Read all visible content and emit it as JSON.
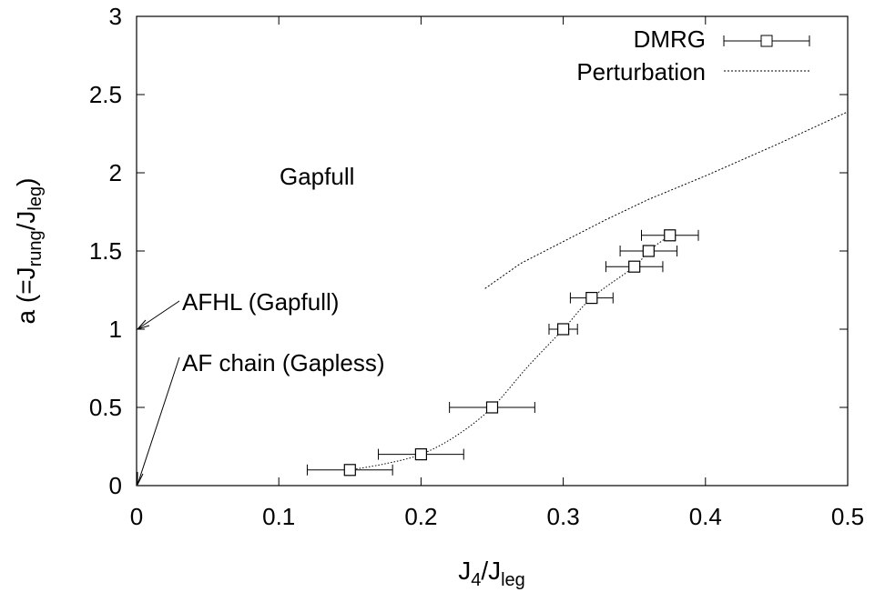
{
  "chart_data": {
    "type": "scatter",
    "x_axis": {
      "label_main": "J",
      "label_sub1": "4",
      "label_mid": "/J",
      "label_sub2": "leg",
      "range": [
        0,
        0.5
      ],
      "ticks": [
        0,
        0.1,
        0.2,
        0.3,
        0.4,
        0.5
      ],
      "tick_labels": [
        "0",
        "0.1",
        "0.2",
        "0.3",
        "0.4",
        "0.5"
      ]
    },
    "y_axis": {
      "label_pre": "a (=J",
      "label_sub1": "rung",
      "label_mid": "/J",
      "label_sub2": "leg",
      "label_post": ")",
      "range": [
        0,
        3
      ],
      "ticks": [
        0,
        0.5,
        1,
        1.5,
        2,
        2.5,
        3
      ],
      "tick_labels": [
        "0",
        "0.5",
        "1",
        "1.5",
        "2",
        "2.5",
        "3"
      ]
    },
    "grid": false,
    "legend_position": "top-right",
    "series": [
      {
        "name": "DMRG",
        "style": "points-errorbars",
        "points": [
          {
            "x": 0.15,
            "y": 0.1,
            "xerr_lo": 0.12,
            "xerr_hi": 0.18
          },
          {
            "x": 0.2,
            "y": 0.2,
            "xerr_lo": 0.17,
            "xerr_hi": 0.23
          },
          {
            "x": 0.25,
            "y": 0.5,
            "xerr_lo": 0.22,
            "xerr_hi": 0.28
          },
          {
            "x": 0.3,
            "y": 1.0,
            "xerr_lo": 0.29,
            "xerr_hi": 0.31
          },
          {
            "x": 0.32,
            "y": 1.2,
            "xerr_lo": 0.305,
            "xerr_hi": 0.335
          },
          {
            "x": 0.35,
            "y": 1.4,
            "xerr_lo": 0.33,
            "xerr_hi": 0.37
          },
          {
            "x": 0.36,
            "y": 1.5,
            "xerr_lo": 0.34,
            "xerr_hi": 0.38
          },
          {
            "x": 0.375,
            "y": 1.6,
            "xerr_lo": 0.355,
            "xerr_hi": 0.395
          }
        ],
        "guide_curve": [
          [
            0.15,
            0.1
          ],
          [
            0.175,
            0.14
          ],
          [
            0.2,
            0.2
          ],
          [
            0.225,
            0.32
          ],
          [
            0.25,
            0.5
          ],
          [
            0.275,
            0.76
          ],
          [
            0.3,
            1.0
          ],
          [
            0.32,
            1.2
          ],
          [
            0.35,
            1.4
          ],
          [
            0.36,
            1.5
          ],
          [
            0.375,
            1.6
          ]
        ]
      },
      {
        "name": "Perturbation",
        "style": "dotted-line",
        "points": [
          [
            0.245,
            1.26
          ],
          [
            0.27,
            1.42
          ],
          [
            0.3,
            1.56
          ],
          [
            0.33,
            1.7
          ],
          [
            0.36,
            1.83
          ],
          [
            0.4,
            1.98
          ],
          [
            0.45,
            2.18
          ],
          [
            0.5,
            2.39
          ]
        ]
      }
    ],
    "annotations": [
      {
        "text": "Gapfull",
        "x": 0.1,
        "y": 1.95
      },
      {
        "text": "AFHL (Gapfull)",
        "x": 0.032,
        "y": 1.18,
        "arrow_to": [
          0,
          1.0
        ]
      },
      {
        "text": "AF chain (Gapless)",
        "x": 0.032,
        "y": 0.8,
        "arrow_to": [
          0,
          0.0
        ]
      }
    ]
  }
}
